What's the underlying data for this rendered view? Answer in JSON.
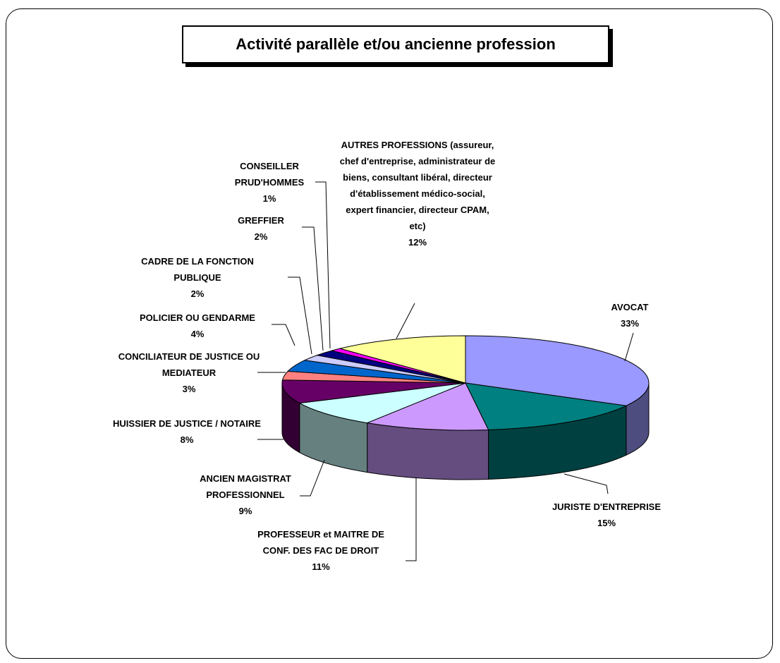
{
  "chart_data": {
    "type": "pie3d",
    "title": "Activité parallèle et/ou ancienne profession",
    "categories": [
      "AVOCAT",
      "JURISTE D'ENTREPRISE",
      "PROFESSEUR et MAITRE DE CONF. DES FAC DE DROIT",
      "ANCIEN MAGISTRAT PROFESSIONNEL",
      "HUISSIER DE JUSTICE / NOTAIRE",
      "CONCILIATEUR DE JUSTICE OU MEDIATEUR",
      "POLICIER OU GENDARME",
      "CADRE DE LA FONCTION PUBLIQUE",
      "GREFFIER",
      "CONSEILLER PRUD'HOMMES",
      "AUTRES PROFESSIONS (assureur, chef d'entreprise, administrateur de biens, consultant libéral, directeur d'établissement médico-social, expert financier, directeur CPAM, etc)"
    ],
    "values": [
      33,
      15,
      11,
      9,
      8,
      3,
      4,
      2,
      2,
      1,
      12
    ],
    "value_labels": [
      "33%",
      "15%",
      "11%",
      "9%",
      "8%",
      "3%",
      "4%",
      "2%",
      "2%",
      "1%",
      "12%"
    ],
    "colors": [
      "#9999ff",
      "#008080",
      "#cc99ff",
      "#ccffff",
      "#660066",
      "#ff8080",
      "#0066cc",
      "#ccccff",
      "#000080",
      "#ff00ff",
      "#ffff99"
    ]
  }
}
